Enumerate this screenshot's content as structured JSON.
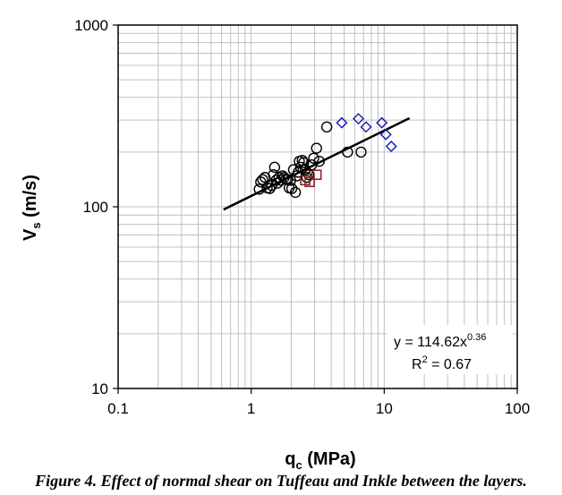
{
  "chart_data": {
    "type": "scatter",
    "title": "",
    "xlabel": {
      "main": "q",
      "sub": "c",
      "rest": " (MPa)"
    },
    "ylabel": {
      "main": "V",
      "sub": "s",
      "rest": " (m/s)"
    },
    "x_scale": "log",
    "y_scale": "log",
    "xlim": [
      0.1,
      100
    ],
    "ylim": [
      10,
      1000
    ],
    "x_ticks": [
      0.1,
      1,
      10,
      100
    ],
    "x_tick_labels": [
      "0.1",
      "1",
      "10",
      "100"
    ],
    "y_ticks": [
      10,
      100,
      1000
    ],
    "y_tick_labels": [
      "10",
      "100",
      "1000"
    ],
    "grid": true,
    "series": [
      {
        "marker": "circle",
        "color": "#000000",
        "points": [
          [
            1.15,
            125
          ],
          [
            1.18,
            137
          ],
          [
            1.22,
            141
          ],
          [
            1.27,
            145
          ],
          [
            1.32,
            127
          ],
          [
            1.38,
            126
          ],
          [
            1.43,
            131
          ],
          [
            1.47,
            150
          ],
          [
            1.5,
            165
          ],
          [
            1.54,
            140
          ],
          [
            1.58,
            135
          ],
          [
            1.62,
            145
          ],
          [
            1.67,
            140
          ],
          [
            1.72,
            148
          ],
          [
            1.77,
            145
          ],
          [
            1.83,
            142
          ],
          [
            1.88,
            141
          ],
          [
            1.93,
            127
          ],
          [
            1.98,
            140
          ],
          [
            2.02,
            126
          ],
          [
            2.08,
            160
          ],
          [
            2.15,
            120
          ],
          [
            2.2,
            148
          ],
          [
            2.26,
            155
          ],
          [
            2.3,
            178
          ],
          [
            2.35,
            165
          ],
          [
            2.42,
            180
          ],
          [
            2.48,
            175
          ],
          [
            2.55,
            160
          ],
          [
            2.62,
            145
          ],
          [
            2.72,
            150
          ],
          [
            2.85,
            170
          ],
          [
            2.95,
            185
          ],
          [
            3.1,
            210
          ],
          [
            3.25,
            178
          ],
          [
            3.7,
            275
          ],
          [
            5.3,
            200
          ],
          [
            6.7,
            200
          ]
        ]
      },
      {
        "marker": "square",
        "color": "#8b1a1a",
        "points": [
          [
            2.55,
            140
          ],
          [
            2.75,
            137
          ],
          [
            3.1,
            150
          ]
        ]
      },
      {
        "marker": "diamond",
        "color": "#1414b4",
        "points": [
          [
            4.8,
            290
          ],
          [
            6.4,
            305
          ],
          [
            7.3,
            275
          ],
          [
            9.6,
            290
          ],
          [
            10.3,
            250
          ],
          [
            11.3,
            215
          ]
        ]
      }
    ],
    "trendline": {
      "type": "power",
      "a": 114.62,
      "b": 0.36,
      "x_range": [
        0.62,
        15.5
      ],
      "color": "#000000"
    },
    "annotation": {
      "equation": {
        "prefix": "y = 114.62x",
        "exponent": "0.36"
      },
      "r_squared": {
        "base": "R",
        "power": "2",
        "suffix": " = 0.67"
      },
      "placement": "bottom-right"
    }
  },
  "caption": "Figure 4. Effect of normal shear on Tuffeau and Inkle between the layers."
}
